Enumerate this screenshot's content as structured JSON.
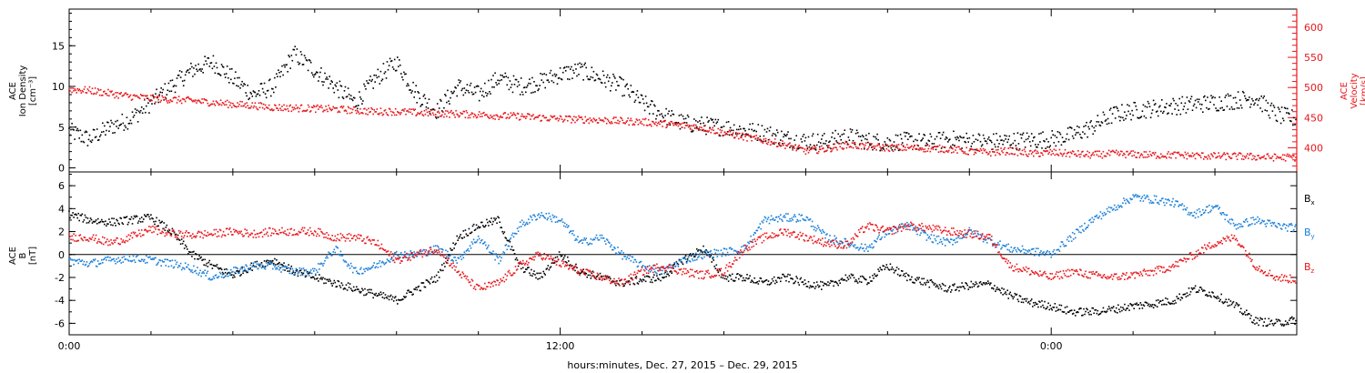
{
  "chart_data": [
    {
      "type": "scatter",
      "left_axis": {
        "label_lines": [
          "ACE",
          "Ion Density",
          "[cm⁻³]"
        ],
        "ylim": [
          -0.5,
          19.5
        ],
        "ticks": [
          "0",
          "5",
          "10",
          "15"
        ],
        "tick_values": [
          0,
          5,
          10,
          15
        ],
        "color": "#000000"
      },
      "right_axis": {
        "label_lines": [
          "ACE",
          "Velocity",
          "[km/s]"
        ],
        "ylim": [
          360,
          630
        ],
        "ticks": [
          "400",
          "450",
          "500",
          "550",
          "600"
        ],
        "tick_values": [
          400,
          450,
          500,
          550,
          600
        ],
        "color": "#e8161b"
      },
      "series": [
        {
          "axis": "left",
          "color": "#000000",
          "x": [
            0,
            0.5,
            1,
            1.5,
            2,
            2.5,
            3,
            3.5,
            4,
            4.5,
            5,
            5.5,
            6,
            6.5,
            7,
            7.5,
            8,
            8.5,
            9,
            9.5,
            10,
            10.5,
            11,
            11.5,
            12,
            12.5,
            13,
            13.5,
            14,
            14.5,
            15,
            15.5,
            16,
            16.5,
            17,
            17.5,
            18,
            18.5,
            19,
            19.5,
            20,
            20.5,
            21,
            21.5,
            22,
            22.5,
            23,
            23.5,
            24,
            24.5,
            25,
            25.5,
            26,
            26.5,
            27,
            27.5,
            28,
            28.5,
            29,
            29.5,
            30
          ],
          "values": [
            4.5,
            3.5,
            5,
            6,
            8,
            10,
            12,
            13,
            11,
            9,
            10,
            14,
            12,
            10,
            8,
            11,
            13,
            9,
            7,
            10,
            9,
            11,
            10,
            10.5,
            11.5,
            12,
            11,
            10,
            8,
            6.5,
            5.5,
            5.2,
            5,
            4.6,
            4.3,
            3.6,
            3.3,
            3.2,
            3.9,
            3.3,
            3.1,
            3.3,
            3.1,
            3.5,
            3.3,
            3.2,
            3.3,
            3.4,
            3.5,
            4,
            5,
            6.5,
            7,
            7.3,
            7.6,
            7.8,
            8,
            8.3,
            8.6,
            6.5,
            6
          ]
        },
        {
          "axis": "right",
          "color": "#e8161b",
          "x": [
            0,
            0.5,
            1,
            1.5,
            2,
            2.5,
            3,
            3.5,
            4,
            4.5,
            5,
            5.5,
            6,
            6.5,
            7,
            7.5,
            8,
            8.5,
            9,
            9.5,
            10,
            10.5,
            11,
            11.5,
            12,
            12.5,
            13,
            13.5,
            14,
            14.5,
            15,
            15.5,
            16,
            16.5,
            17,
            17.5,
            18,
            18.5,
            19,
            19.5,
            20,
            20.5,
            21,
            21.5,
            22,
            22.5,
            23,
            23.5,
            24,
            24.5,
            25,
            25.5,
            26,
            26.5,
            27,
            27.5,
            28,
            28.5,
            29,
            29.5,
            30
          ],
          "values": [
            497,
            495,
            490,
            485,
            482,
            480,
            478,
            475,
            472,
            470,
            467,
            466,
            465,
            464,
            462,
            460,
            460,
            458,
            457,
            456,
            455,
            453,
            452,
            450,
            448,
            447,
            446,
            444,
            443,
            440,
            437,
            433,
            425,
            418,
            412,
            405,
            395,
            398,
            405,
            402,
            400,
            400,
            399,
            398,
            394,
            392,
            395,
            390,
            392,
            390,
            388,
            390,
            389,
            388,
            388,
            387,
            386,
            386,
            385,
            384,
            384
          ]
        }
      ]
    },
    {
      "type": "scatter",
      "axis": {
        "label_lines": [
          "ACE",
          "B",
          "[nT]"
        ],
        "ylim": [
          -7,
          7.2
        ],
        "ticks": [
          "-6",
          "-4",
          "-2",
          "0",
          "2",
          "4",
          "6"
        ],
        "tick_values": [
          -6,
          -4,
          -2,
          0,
          2,
          4,
          6
        ]
      },
      "legend_position": "right",
      "series": [
        {
          "name": "B",
          "subscript": "x",
          "color": "#000000",
          "x": [
            0,
            0.5,
            1,
            1.5,
            2,
            2.5,
            3,
            3.5,
            4,
            4.5,
            5,
            5.5,
            6,
            6.5,
            7,
            7.5,
            8,
            8.5,
            9,
            9.5,
            10,
            10.5,
            11,
            11.5,
            12,
            12.5,
            13,
            13.5,
            14,
            14.5,
            15,
            15.5,
            16,
            16.5,
            17,
            17.5,
            18,
            18.5,
            19,
            19.5,
            20,
            20.5,
            21,
            21.5,
            22,
            22.5,
            23,
            23.5,
            24,
            24.5,
            25,
            25.5,
            26,
            26.5,
            27,
            27.5,
            28,
            28.5,
            29,
            29.5,
            30
          ],
          "values": [
            3.5,
            3,
            2.8,
            3,
            3.2,
            2,
            0,
            -1,
            -1.8,
            -1,
            -0.5,
            -1.5,
            -2,
            -2.5,
            -3,
            -3.5,
            -4,
            -3,
            -2,
            1.5,
            2.5,
            3,
            -1,
            -2,
            0,
            -1.5,
            -2,
            -2.5,
            -2.2,
            -2,
            -0.5,
            0.5,
            -2,
            -2,
            -2.5,
            -2,
            -2.5,
            -2.8,
            -2,
            -2.3,
            -1,
            -2,
            -2.5,
            -3,
            -2.7,
            -2.6,
            -3.6,
            -4.2,
            -4.5,
            -5,
            -5,
            -4.8,
            -4.5,
            -4.3,
            -4,
            -3,
            -3.5,
            -4.5,
            -5.8,
            -6,
            -5.7
          ]
        },
        {
          "name": "B",
          "subscript": "y",
          "color": "#1a7fd8",
          "x": [
            0,
            0.5,
            1,
            1.5,
            2,
            2.5,
            3,
            3.5,
            4,
            4.5,
            5,
            5.5,
            6,
            6.5,
            7,
            7.5,
            8,
            8.5,
            9,
            9.5,
            10,
            10.5,
            11,
            11.5,
            12,
            12.5,
            13,
            13.5,
            14,
            14.5,
            15,
            15.5,
            16,
            16.5,
            17,
            17.5,
            18,
            18.5,
            19,
            19.5,
            20,
            20.5,
            21,
            21.5,
            22,
            22.5,
            23,
            23.5,
            24,
            24.5,
            25,
            25.5,
            26,
            26.5,
            27,
            27.5,
            28,
            28.5,
            29,
            29.5,
            30
          ],
          "values": [
            -0.5,
            -0.8,
            -0.5,
            -0.3,
            -0.5,
            -0.8,
            -1.2,
            -2,
            -1.5,
            -1,
            -1,
            -1.5,
            -1.5,
            0.5,
            -1.5,
            -1,
            0,
            0,
            0.5,
            -0.5,
            1.5,
            -0.5,
            2.5,
            3.5,
            3,
            1,
            1.5,
            0,
            -1,
            -1.5,
            -0.5,
            0,
            0.2,
            0.5,
            3,
            3.2,
            3.2,
            1.5,
            1,
            0.5,
            2,
            2.5,
            1.5,
            1,
            2,
            1.2,
            0.5,
            0.3,
            0,
            1.5,
            3,
            4,
            5,
            4.8,
            4.5,
            3.5,
            4.2,
            2.5,
            3,
            2.5,
            2.3
          ]
        },
        {
          "name": "B",
          "subscript": "z",
          "color": "#e8161b",
          "x": [
            0,
            0.5,
            1,
            1.5,
            2,
            2.5,
            3,
            3.5,
            4,
            4.5,
            5,
            5.5,
            6,
            6.5,
            7,
            7.5,
            8,
            8.5,
            9,
            9.5,
            10,
            10.5,
            11,
            11.5,
            12,
            12.5,
            13,
            13.5,
            14,
            14.5,
            15,
            15.5,
            16,
            16.5,
            17,
            17.5,
            18,
            18.5,
            19,
            19.5,
            20,
            20.5,
            21,
            21.5,
            22,
            22.5,
            23,
            23.5,
            24,
            24.5,
            25,
            25.5,
            26,
            26.5,
            27,
            27.5,
            28,
            28.5,
            29,
            29.5,
            30
          ],
          "values": [
            1.5,
            1.5,
            1,
            1.5,
            2.2,
            1.8,
            1.7,
            1.8,
            2,
            1.8,
            2,
            2,
            2,
            1.5,
            1.5,
            1,
            -0.5,
            0,
            0.5,
            -1.5,
            -3,
            -2.5,
            -1,
            0,
            -0.8,
            -1.5,
            -2,
            -2.5,
            -1.5,
            -1,
            -1.5,
            -1.8,
            -1.5,
            0.5,
            1.5,
            2,
            1.5,
            1,
            0.8,
            2.5,
            2,
            2.5,
            2.3,
            2,
            1.8,
            1.5,
            -1,
            -1.5,
            -2,
            -1.5,
            -1.8,
            -2,
            -1.8,
            -1.5,
            -1,
            0,
            1,
            1.5,
            -1,
            -2,
            -2.2
          ]
        }
      ],
      "legend": [
        {
          "name": "B",
          "subscript": "x",
          "color": "#000000"
        },
        {
          "name": "B",
          "subscript": "y",
          "color": "#1a7fd8"
        },
        {
          "name": "B",
          "subscript": "z",
          "color": "#e8161b"
        }
      ]
    }
  ],
  "x_axis": {
    "range_hours": [
      0,
      30
    ],
    "tick_labels": [
      "0:00",
      "12:00",
      "0:00"
    ],
    "tick_hours": [
      0,
      12,
      24
    ],
    "minor_tick_hours": [
      2,
      4,
      6,
      8,
      10,
      14,
      16,
      18,
      20,
      22,
      26,
      28
    ]
  },
  "xlabel": "hours:minutes, Dec. 27, 2015 – Dec. 29, 2015"
}
